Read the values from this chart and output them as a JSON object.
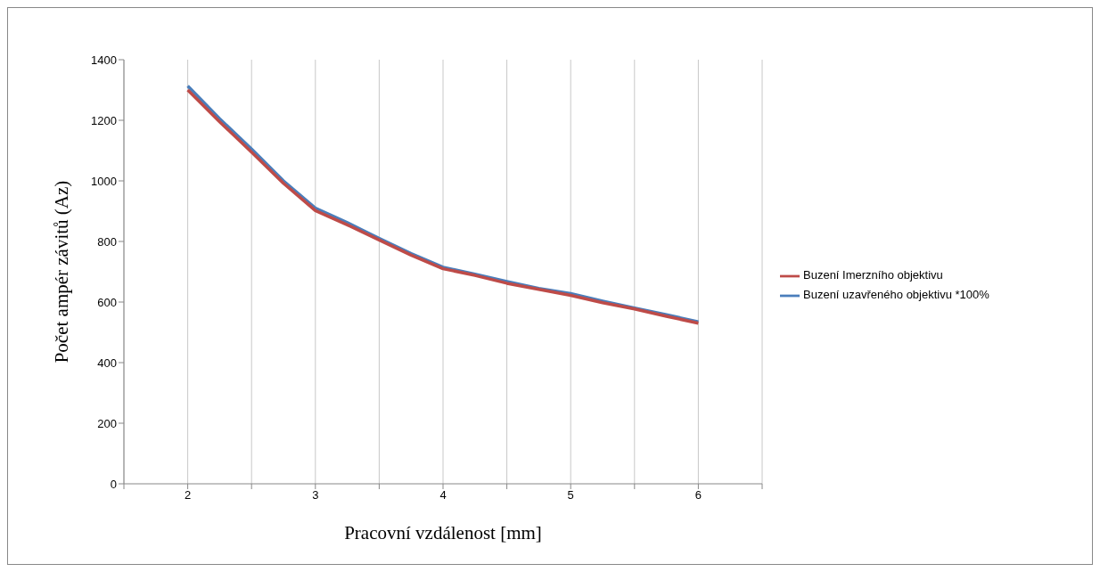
{
  "chart_data": {
    "type": "line",
    "xlabel": "Pracovní vzdálenost [mm]",
    "ylabel": "Počet ampér závitů (Az)",
    "x": [
      2,
      2.25,
      2.5,
      2.75,
      3,
      3.25,
      3.5,
      3.75,
      4,
      4.25,
      4.5,
      4.75,
      5,
      5.25,
      5.5,
      5.75,
      6
    ],
    "series": [
      {
        "name": "Buzení uzavřeného objektivu *100%",
        "color": "#4a7ebb",
        "values": [
          1313,
          1205,
          1105,
          1000,
          910,
          862,
          810,
          760,
          715,
          692,
          668,
          645,
          628,
          603,
          580,
          558,
          535
        ]
      },
      {
        "name": "Buzení Imerzního objektivu",
        "color": "#be4b48",
        "values": [
          1300,
          1195,
          1095,
          992,
          902,
          855,
          805,
          755,
          710,
          688,
          662,
          642,
          622,
          598,
          577,
          553,
          530
        ]
      }
    ],
    "xlim": [
      1.5,
      6.5
    ],
    "xticks": [
      {
        "value": 1.5,
        "label": null
      },
      2,
      {
        "value": 2.5,
        "label": null
      },
      3,
      {
        "value": 3.5,
        "label": null
      },
      4,
      {
        "value": 4.5,
        "label": null
      },
      5,
      {
        "value": 5.5,
        "label": null
      },
      6,
      {
        "value": 6.5,
        "label": null
      }
    ],
    "ylim": [
      0,
      1400
    ],
    "yticks": [
      0,
      200,
      400,
      600,
      800,
      1000,
      1200,
      1400
    ],
    "grid": "x",
    "legend": "right",
    "marker": "none",
    "line_style": "solid"
  }
}
